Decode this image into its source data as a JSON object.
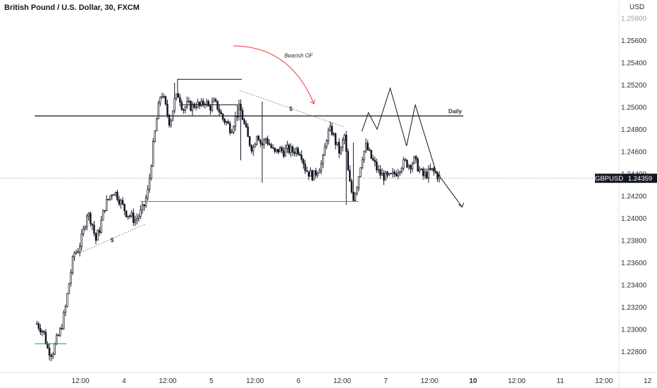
{
  "chart_data": {
    "type": "candlestick",
    "title": "British Pound / U.S. Dollar, 30, FXCM",
    "currency": "USD",
    "ylim": [
      1.227,
      1.259
    ],
    "y_ticks": [
      "1.22800",
      "1.23000",
      "1.23200",
      "1.23400",
      "1.23600",
      "1.23800",
      "1.24000",
      "1.24200",
      "1.24400",
      "1.24600",
      "1.24800",
      "1.25000",
      "1.25200",
      "1.25400",
      "1.25600",
      "1.25800"
    ],
    "x_ticks": [
      {
        "label": "12:00",
        "pos": 2.0,
        "bold": false
      },
      {
        "label": "4",
        "pos": 4.0,
        "bold": false
      },
      {
        "label": "12:00",
        "pos": 6.0,
        "bold": false
      },
      {
        "label": "5",
        "pos": 8.0,
        "bold": false
      },
      {
        "label": "12:00",
        "pos": 10.0,
        "bold": false
      },
      {
        "label": "6",
        "pos": 12.0,
        "bold": false
      },
      {
        "label": "12:00",
        "pos": 14.0,
        "bold": false
      },
      {
        "label": "7",
        "pos": 16.0,
        "bold": false
      },
      {
        "label": "12:00",
        "pos": 18.0,
        "bold": false
      },
      {
        "label": "10",
        "pos": 20.0,
        "bold": true
      },
      {
        "label": "12:00",
        "pos": 22.0,
        "bold": false
      },
      {
        "label": "11",
        "pos": 24.0,
        "bold": false
      },
      {
        "label": "12:00",
        "pos": 26.0,
        "bold": false
      },
      {
        "label": "12",
        "pos": 28.0,
        "bold": false
      }
    ],
    "price_path": [
      [
        0.0,
        1.2305
      ],
      [
        0.3,
        1.2298
      ],
      [
        0.5,
        1.2282
      ],
      [
        0.7,
        1.2278
      ],
      [
        0.9,
        1.229
      ],
      [
        1.1,
        1.23
      ],
      [
        1.3,
        1.2318
      ],
      [
        1.5,
        1.2345
      ],
      [
        1.7,
        1.2368
      ],
      [
        1.9,
        1.2372
      ],
      [
        2.1,
        1.2385
      ],
      [
        2.3,
        1.2405
      ],
      [
        2.5,
        1.2398
      ],
      [
        2.7,
        1.238
      ],
      [
        2.9,
        1.2392
      ],
      [
        3.1,
        1.241
      ],
      [
        3.3,
        1.2418
      ],
      [
        3.5,
        1.2425
      ],
      [
        3.7,
        1.242
      ],
      [
        3.9,
        1.2412
      ],
      [
        4.1,
        1.2405
      ],
      [
        4.3,
        1.2402
      ],
      [
        4.5,
        1.2398
      ],
      [
        4.7,
        1.2403
      ],
      [
        4.9,
        1.241
      ],
      [
        5.1,
        1.2425
      ],
      [
        5.3,
        1.246
      ],
      [
        5.5,
        1.249
      ],
      [
        5.7,
        1.2515
      ],
      [
        5.9,
        1.25
      ],
      [
        6.1,
        1.2485
      ],
      [
        6.3,
        1.2505
      ],
      [
        6.5,
        1.2512
      ],
      [
        6.7,
        1.2498
      ],
      [
        6.9,
        1.2502
      ],
      [
        7.1,
        1.25
      ],
      [
        7.3,
        1.2503
      ],
      [
        7.5,
        1.25
      ],
      [
        7.7,
        1.2506
      ],
      [
        7.9,
        1.2499
      ],
      [
        8.1,
        1.2504
      ],
      [
        8.3,
        1.25
      ],
      [
        8.5,
        1.249
      ],
      [
        8.7,
        1.2486
      ],
      [
        8.9,
        1.248
      ],
      [
        9.1,
        1.249
      ],
      [
        9.3,
        1.25
      ],
      [
        9.5,
        1.2485
      ],
      [
        9.7,
        1.247
      ],
      [
        9.9,
        1.2462
      ],
      [
        10.1,
        1.2478
      ],
      [
        10.3,
        1.2465
      ],
      [
        10.5,
        1.2472
      ],
      [
        10.7,
        1.2465
      ],
      [
        10.9,
        1.2458
      ],
      [
        11.1,
        1.2462
      ],
      [
        11.3,
        1.246
      ],
      [
        11.5,
        1.2462
      ],
      [
        11.7,
        1.246
      ],
      [
        11.9,
        1.2462
      ],
      [
        12.1,
        1.246
      ],
      [
        12.3,
        1.2445
      ],
      [
        12.5,
        1.244
      ],
      [
        12.7,
        1.2438
      ],
      [
        12.9,
        1.2445
      ],
      [
        13.1,
        1.245
      ],
      [
        13.3,
        1.2475
      ],
      [
        13.5,
        1.248
      ],
      [
        13.7,
        1.2468
      ],
      [
        13.9,
        1.2458
      ],
      [
        14.1,
        1.2475
      ],
      [
        14.3,
        1.2435
      ],
      [
        14.5,
        1.2418
      ],
      [
        14.7,
        1.2432
      ],
      [
        14.9,
        1.2455
      ],
      [
        15.1,
        1.2465
      ],
      [
        15.3,
        1.2455
      ],
      [
        15.5,
        1.2448
      ],
      [
        15.7,
        1.244
      ],
      [
        15.9,
        1.2438
      ],
      [
        16.1,
        1.2436
      ],
      [
        16.3,
        1.2438
      ],
      [
        16.5,
        1.2442
      ],
      [
        16.7,
        1.2448
      ],
      [
        16.9,
        1.245
      ],
      [
        17.1,
        1.2448
      ],
      [
        17.3,
        1.2452
      ],
      [
        17.5,
        1.2445
      ],
      [
        17.7,
        1.2438
      ],
      [
        17.9,
        1.244
      ],
      [
        18.1,
        1.2443
      ],
      [
        18.3,
        1.244
      ],
      [
        18.5,
        1.2436
      ]
    ],
    "current_price": {
      "label": "GBPUSD",
      "value": "1.24359",
      "price": 1.24359
    },
    "levels": [
      {
        "name": "daily",
        "label": "Daily",
        "price": 1.2492,
        "x_start": -0.1,
        "x_end": 19.55,
        "color": "#131722"
      },
      {
        "name": "swing-low",
        "label": "",
        "price": 1.2415,
        "x_start": 4.75,
        "x_end": 14.75,
        "color": "#f23645"
      },
      {
        "name": "range-high",
        "label": "",
        "price": 1.2525,
        "x_start": 6.45,
        "x_end": 9.4,
        "color": "#131722"
      },
      {
        "name": "box-top",
        "label": "",
        "price": 1.2502,
        "x_start": 6.6,
        "x_end": 9.2,
        "color": "#131722"
      },
      {
        "name": "start-level",
        "label": "",
        "price": 1.2287,
        "x_start": -0.1,
        "x_end": 1.35,
        "color": "#089981"
      }
    ],
    "trendlines": [
      {
        "name": "upper-liquidity",
        "label": "$",
        "from": [
          9.3,
          1.2515
        ],
        "to": [
          14.1,
          1.2482
        ],
        "label_at": [
          11.65,
          1.24985
        ],
        "color": "#787b86"
      },
      {
        "name": "lower-liquidity",
        "label": "$",
        "from": [
          1.9,
          1.2368
        ],
        "to": [
          5.0,
          1.2395
        ],
        "label_at": [
          3.45,
          1.23805
        ],
        "color": "#787b86"
      }
    ],
    "annotations": [
      {
        "name": "bearish-of",
        "text": "Bearish OF",
        "at": [
          12.0,
          1.25445
        ]
      }
    ],
    "bearish_arrow": {
      "from": [
        9.0,
        1.2555
      ],
      "control": [
        11.6,
        1.2555
      ],
      "to": [
        12.7,
        1.2503
      ],
      "color": "#f23645"
    },
    "projection": [
      [
        14.9,
        1.2478
      ],
      [
        15.2,
        1.2495
      ],
      [
        15.6,
        1.248
      ],
      [
        16.2,
        1.2517
      ],
      [
        16.95,
        1.2465
      ],
      [
        17.35,
        1.2502
      ],
      [
        18.3,
        1.2442
      ],
      [
        19.5,
        1.241
      ]
    ]
  }
}
